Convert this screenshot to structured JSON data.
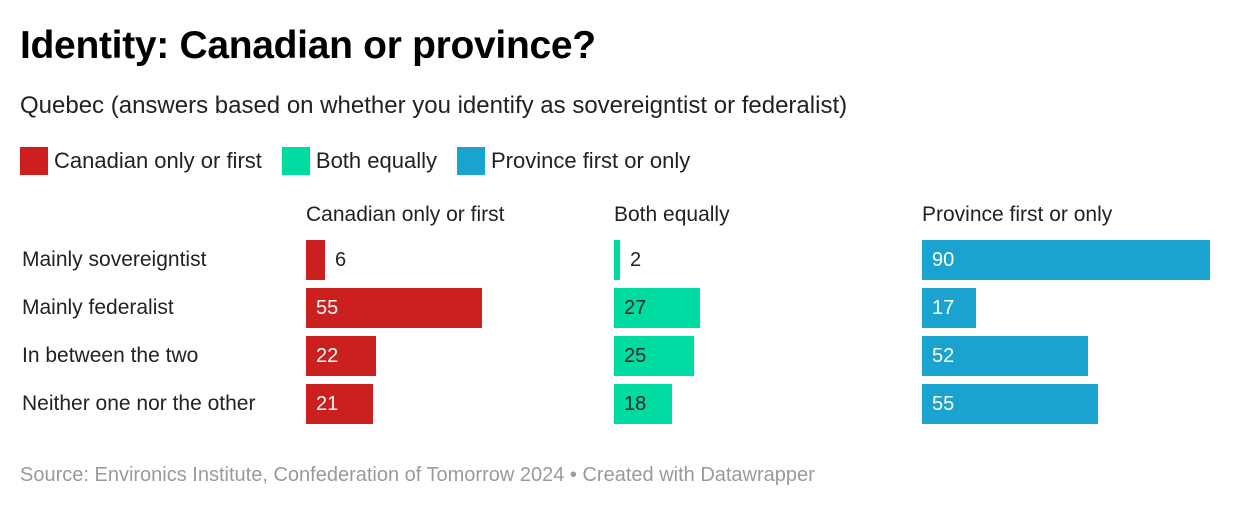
{
  "title": "Identity: Canadian or province?",
  "subtitle": "Quebec (answers based on whether you identify as sovereigntist or federalist)",
  "legend": [
    {
      "label": "Canadian only or first",
      "color": "#cc1f1f"
    },
    {
      "label": "Both equally",
      "color": "#00dba1"
    },
    {
      "label": "Province first or only",
      "color": "#1aa3cf"
    }
  ],
  "footer": "Source: Environics Institute, Confederation of Tomorrow 2024 • Created with Datawrapper",
  "chart_data": {
    "type": "bar",
    "orientation": "horizontal",
    "layout": "small-multiples",
    "categories": [
      "Mainly sovereigntist",
      "Mainly federalist",
      "In between the two",
      "Neither one nor the other"
    ],
    "series": [
      {
        "name": "Canadian only or first",
        "color": "#cc1f1f",
        "values": [
          6,
          55,
          22,
          21
        ]
      },
      {
        "name": "Both equally",
        "color": "#00dba1",
        "values": [
          2,
          27,
          25,
          18
        ]
      },
      {
        "name": "Province first or only",
        "color": "#1aa3cf",
        "values": [
          90,
          17,
          52,
          55
        ]
      }
    ],
    "xlim": [
      0,
      90
    ],
    "grid": false,
    "legend_position": "top-left"
  }
}
